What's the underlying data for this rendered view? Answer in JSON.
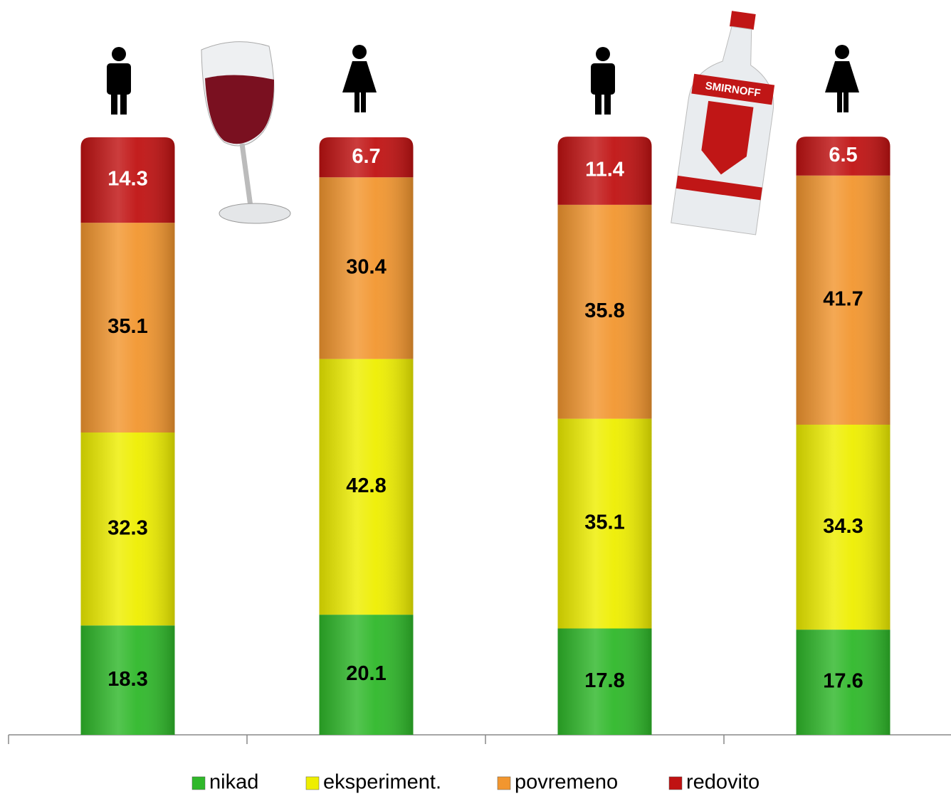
{
  "chart_data": {
    "type": "stacked_bar",
    "categories": [
      null,
      null,
      null,
      null
    ],
    "series": [
      {
        "name": "nikad",
        "color": "#2fb82a",
        "values": [
          18.3,
          20.1,
          17.8,
          17.6
        ]
      },
      {
        "name": "eksperiment.",
        "color": "#eeee00",
        "values": [
          32.3,
          42.8,
          35.1,
          34.3
        ]
      },
      {
        "name": "povremeno",
        "color": "#f2962f",
        "values": [
          35.1,
          30.4,
          35.8,
          41.7
        ]
      },
      {
        "name": "redovito",
        "color": "#c01212",
        "values": [
          14.3,
          6.7,
          11.4,
          6.5
        ]
      }
    ],
    "ylim": [
      0,
      100
    ],
    "legend": "bottom",
    "bottle_label": "SMIRNOFF"
  }
}
